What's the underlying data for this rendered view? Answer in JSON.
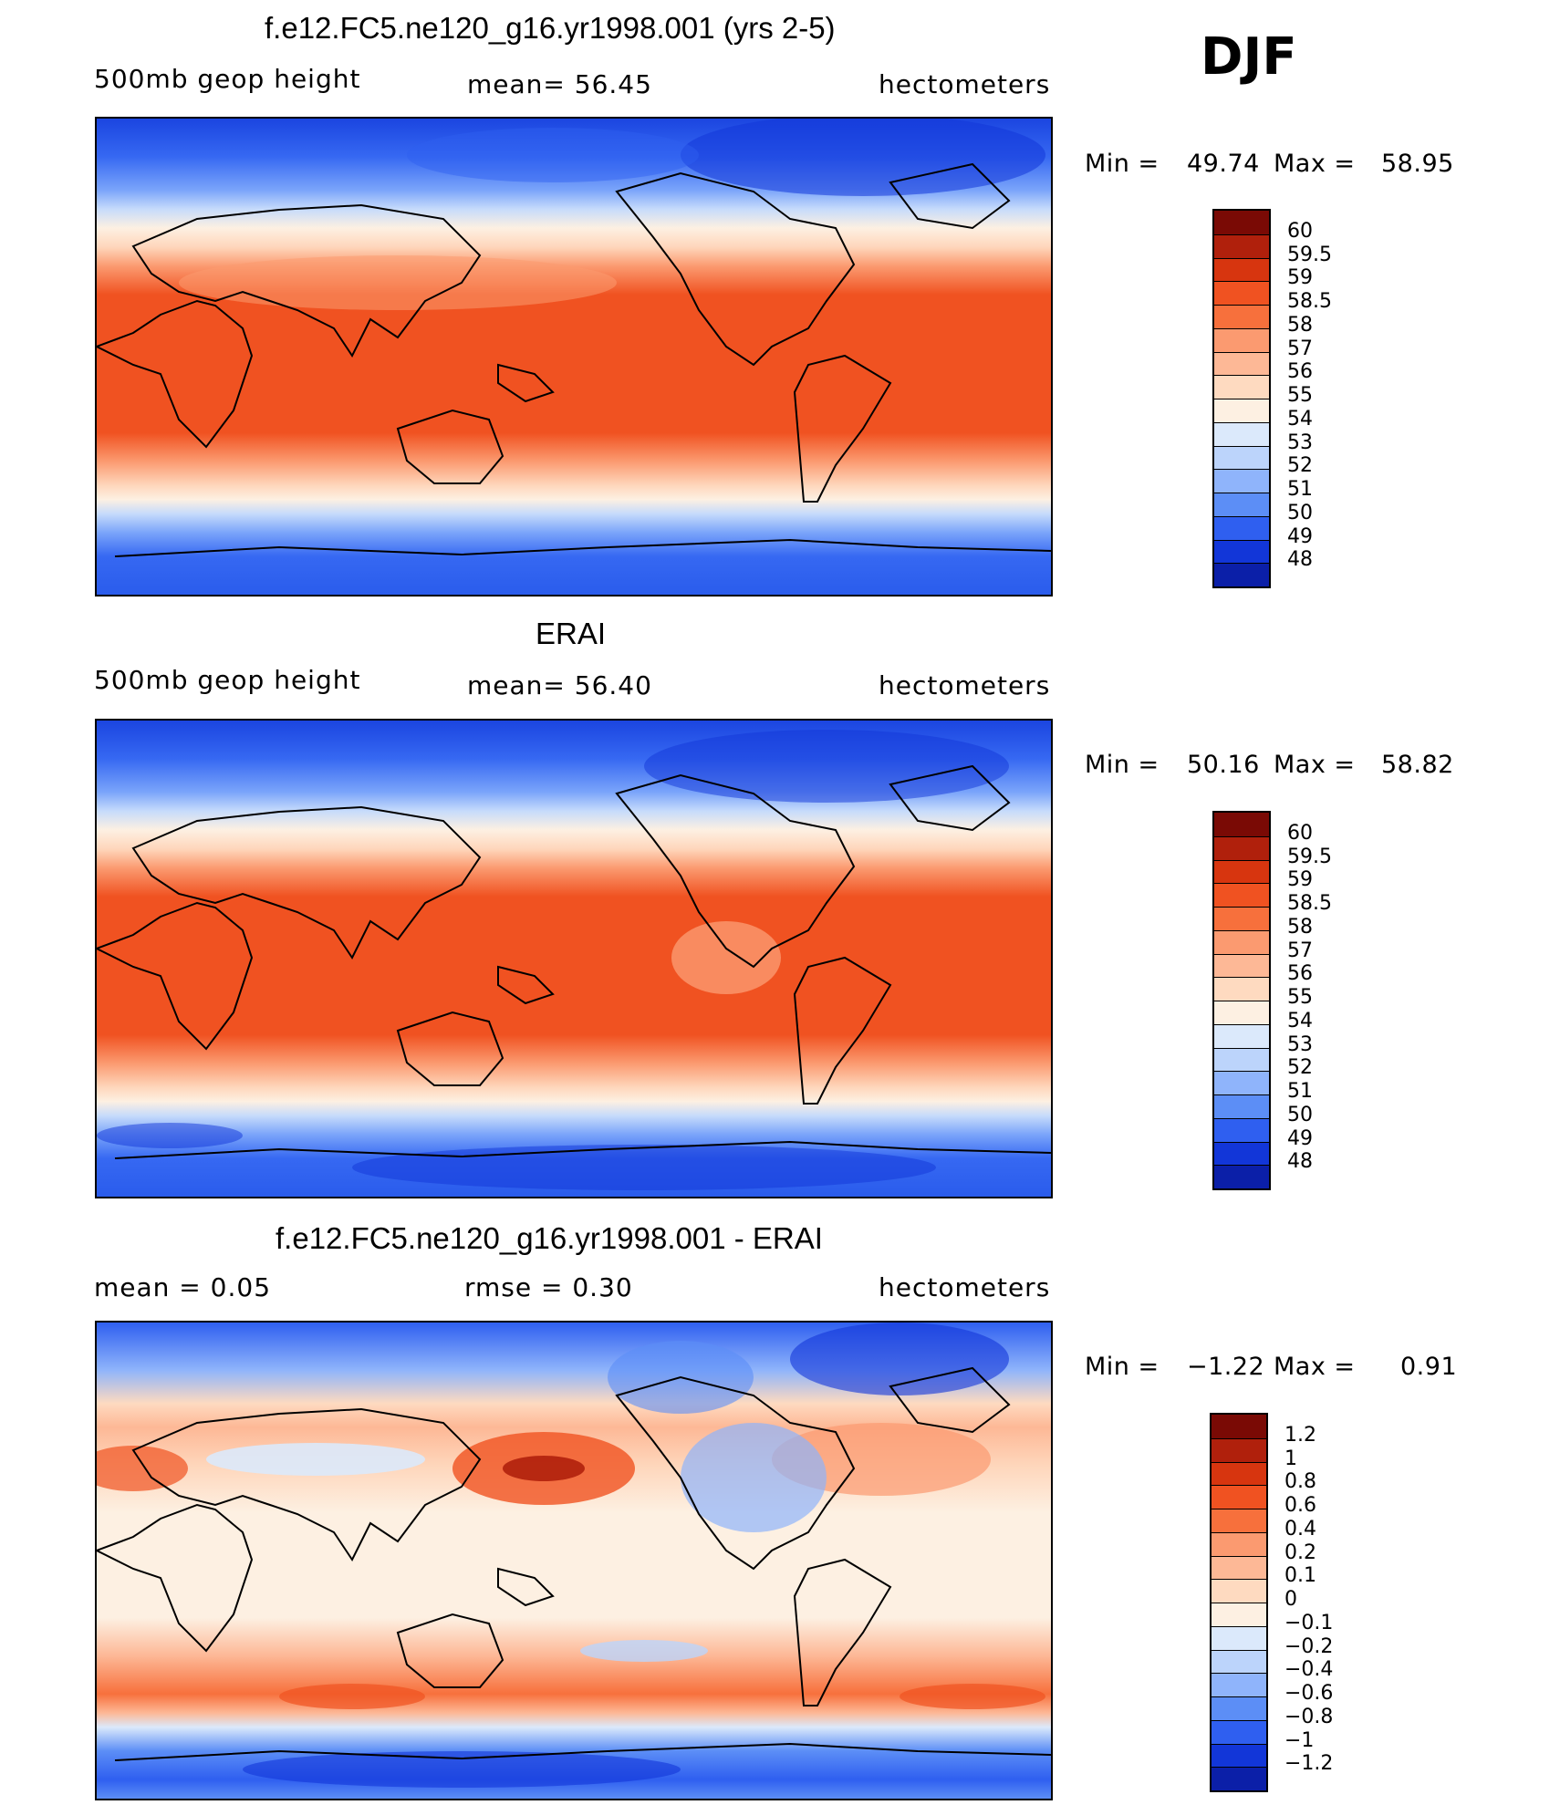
{
  "season": "DJF",
  "panels": [
    {
      "title": "f.e12.FC5.ne120_g16.yr1998.001 (yrs 2-5)",
      "left_label": "500mb  geop  height",
      "center_label": "mean=   56.45",
      "right_label": "hectometers",
      "min_label": "Min  =",
      "min_value": "49.74",
      "max_label": "Max  =",
      "max_value": "58.95"
    },
    {
      "title": "ERAI",
      "left_label": "500mb  geop  height",
      "center_label": "mean=   56.40",
      "right_label": "hectometers",
      "min_label": "Min  =",
      "min_value": "50.16",
      "max_label": "Max  =",
      "max_value": "58.82"
    },
    {
      "title": "f.e12.FC5.ne120_g16.yr1998.001 - ERAI",
      "left_label": "mean  =      0.05",
      "center_label": "rmse  =      0.30",
      "right_label": "hectometers",
      "min_label": "Min  =",
      "min_value": "−1.22",
      "max_label": "Max  =",
      "max_value": "0.91"
    }
  ],
  "colorbars": {
    "absolute": {
      "labels": [
        "60",
        "59.5",
        "59",
        "58.5",
        "58",
        "57",
        "56",
        "55",
        "54",
        "53",
        "52",
        "51",
        "50",
        "49",
        "48"
      ],
      "colors": [
        "#7a0a05",
        "#b0200c",
        "#d7350f",
        "#f05221",
        "#f7703c",
        "#fb9a70",
        "#fdb896",
        "#fedac0",
        "#fdf0e2",
        "#dbe9fb",
        "#bcd4fb",
        "#8fb4fb",
        "#5c8ef6",
        "#2f5ff0",
        "#1236d8",
        "#0b1fa8"
      ]
    },
    "difference": {
      "labels": [
        "1.2",
        "1",
        "0.8",
        "0.6",
        "0.4",
        "0.2",
        "0.1",
        "0",
        "−0.1",
        "−0.2",
        "−0.4",
        "−0.6",
        "−0.8",
        "−1",
        "−1.2"
      ],
      "colors": [
        "#7a0a05",
        "#b0200c",
        "#d7350f",
        "#f05221",
        "#f7703c",
        "#fb9a70",
        "#fdb896",
        "#fedac0",
        "#fdf0e2",
        "#dbe9fb",
        "#bcd4fb",
        "#8fb4fb",
        "#5c8ef6",
        "#2f5ff0",
        "#1236d8",
        "#0b1fa8"
      ]
    }
  }
}
